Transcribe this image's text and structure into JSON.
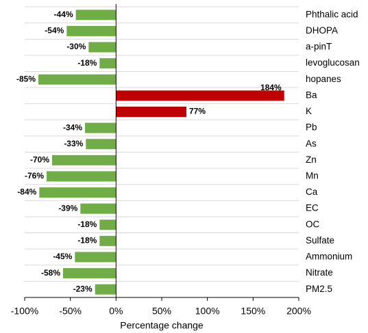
{
  "chart_data": {
    "type": "hbar",
    "x_label": "Percentage change",
    "categories": [
      "Phthalic acid",
      "DHOPA",
      "a-pinT",
      "levoglucosan",
      "hopanes",
      "Ba",
      "K",
      "Pb",
      "As",
      "Zn",
      "Mn",
      "Ca",
      "EC",
      "OC",
      "Sulfate",
      "Ammonium",
      "Nitrate",
      "PM2.5"
    ],
    "values": [
      -44,
      -54,
      -30,
      -18,
      -85,
      184,
      77,
      -34,
      -33,
      -70,
      -76,
      -84,
      -39,
      -18,
      -18,
      -45,
      -58,
      -23
    ],
    "value_labels": [
      "-44%",
      "-54%",
      "-30%",
      "-18%",
      "-85%",
      "184%",
      "77%",
      "-34%",
      "-33%",
      "-70%",
      "-76%",
      "-84%",
      "-39%",
      "-18%",
      "-18%",
      "-45%",
      "-58%",
      "-23%"
    ],
    "colors": [
      "#70ad47",
      "#70ad47",
      "#70ad47",
      "#70ad47",
      "#70ad47",
      "#c00000",
      "#c00000",
      "#70ad47",
      "#70ad47",
      "#70ad47",
      "#70ad47",
      "#70ad47",
      "#70ad47",
      "#70ad47",
      "#70ad47",
      "#70ad47",
      "#70ad47",
      "#70ad47"
    ],
    "xlim": [
      -100,
      200
    ],
    "xticks": [
      {
        "value": -100,
        "label": "-100%"
      },
      {
        "value": -50,
        "label": "-50%"
      },
      {
        "value": 0,
        "label": "0%"
      },
      {
        "value": 50,
        "label": "50%"
      },
      {
        "value": 100,
        "label": "100%"
      },
      {
        "value": 150,
        "label": "150%"
      },
      {
        "value": 200,
        "label": "200%"
      }
    ],
    "grid": true
  }
}
